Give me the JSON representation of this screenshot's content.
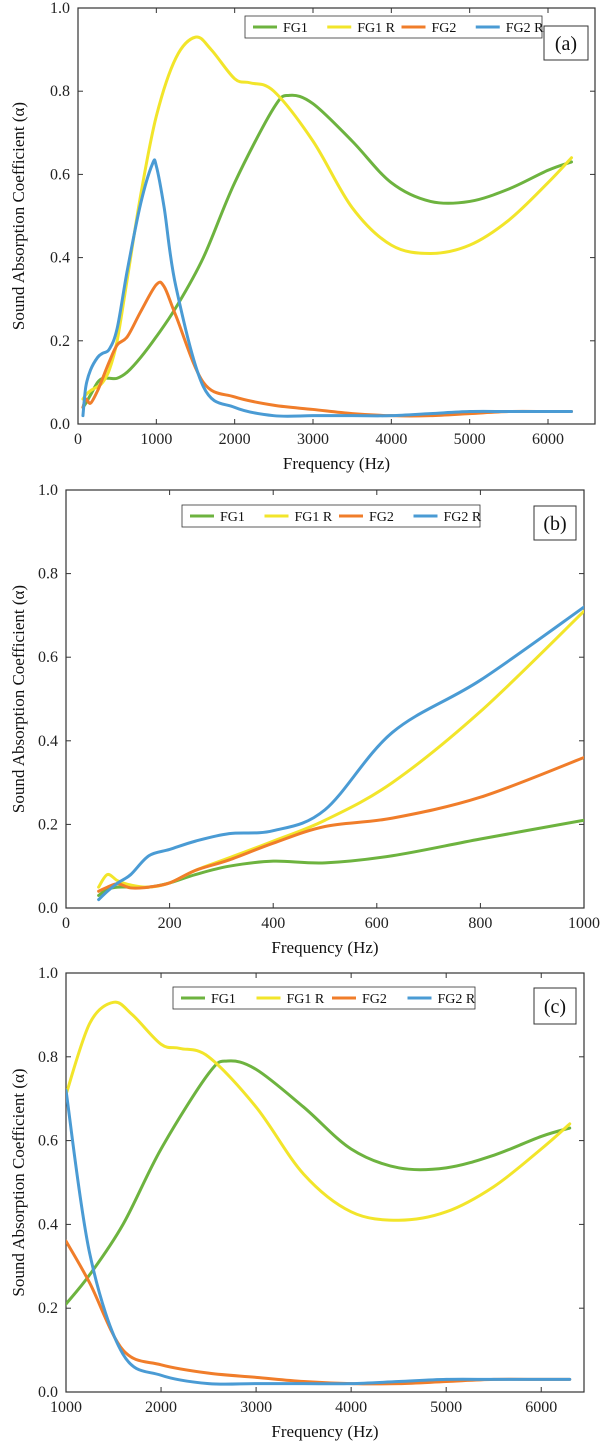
{
  "colors": {
    "FG1": "#6db33f",
    "FG1 R": "#f2e52a",
    "FG2": "#f07d2a",
    "FG2 R": "#4a9bd4"
  },
  "chart_data": [
    {
      "type": "line",
      "panel_label": "(a)",
      "xlabel": "Frequency (Hz)",
      "ylabel": "Sound Absorption Coefficient (α)",
      "xlim": [
        0,
        6600
      ],
      "ylim": [
        0,
        1.0
      ],
      "xticks": [
        0,
        1000,
        2000,
        3000,
        4000,
        5000,
        6000
      ],
      "yticks": [
        0.0,
        0.2,
        0.4,
        0.6,
        0.8,
        1.0
      ],
      "grid": false,
      "legend": "top-right",
      "series": [
        {
          "name": "FG1",
          "x": [
            63,
            100,
            160,
            250,
            315,
            400,
            500,
            630,
            800,
            1000,
            1250,
            1600,
            2000,
            2500,
            2700,
            3000,
            3500,
            4000,
            4500,
            5000,
            5500,
            6000,
            6300
          ],
          "y": [
            0.04,
            0.05,
            0.07,
            0.1,
            0.11,
            0.11,
            0.11,
            0.125,
            0.16,
            0.21,
            0.28,
            0.4,
            0.58,
            0.76,
            0.79,
            0.77,
            0.68,
            0.58,
            0.535,
            0.535,
            0.565,
            0.61,
            0.63
          ]
        },
        {
          "name": "FG1 R",
          "x": [
            63,
            100,
            160,
            250,
            315,
            400,
            500,
            630,
            800,
            1000,
            1250,
            1500,
            1700,
            2000,
            2200,
            2500,
            3000,
            3500,
            4000,
            4500,
            5000,
            5500,
            6000,
            6300
          ],
          "y": [
            0.06,
            0.07,
            0.08,
            0.09,
            0.1,
            0.13,
            0.2,
            0.35,
            0.55,
            0.74,
            0.88,
            0.93,
            0.9,
            0.83,
            0.82,
            0.8,
            0.68,
            0.52,
            0.43,
            0.41,
            0.43,
            0.49,
            0.58,
            0.64
          ]
        },
        {
          "name": "FG2",
          "x": [
            63,
            100,
            160,
            250,
            315,
            400,
            500,
            630,
            800,
            1000,
            1100,
            1250,
            1600,
            2000,
            2500,
            3000,
            3500,
            4000,
            4500,
            5000,
            5500,
            6000,
            6300
          ],
          "y": [
            0.04,
            0.06,
            0.05,
            0.08,
            0.11,
            0.15,
            0.19,
            0.21,
            0.27,
            0.335,
            0.33,
            0.26,
            0.1,
            0.065,
            0.045,
            0.035,
            0.025,
            0.02,
            0.02,
            0.025,
            0.03,
            0.03,
            0.03
          ]
        },
        {
          "name": "FG2 R",
          "x": [
            63,
            100,
            160,
            250,
            315,
            400,
            500,
            630,
            800,
            950,
            1000,
            1100,
            1250,
            1600,
            2000,
            2500,
            3000,
            3500,
            4000,
            4500,
            5000,
            5500,
            6000,
            6300
          ],
          "y": [
            0.02,
            0.09,
            0.13,
            0.16,
            0.17,
            0.18,
            0.23,
            0.37,
            0.53,
            0.625,
            0.62,
            0.52,
            0.33,
            0.09,
            0.04,
            0.02,
            0.02,
            0.02,
            0.02,
            0.025,
            0.03,
            0.03,
            0.03,
            0.03
          ]
        }
      ]
    },
    {
      "type": "line",
      "panel_label": "(b)",
      "xlabel": "Frequency (Hz)",
      "ylabel": "Sound Absorption Coefficient (α)",
      "xlim": [
        0,
        1000
      ],
      "ylim": [
        0,
        1.0
      ],
      "xticks": [
        0,
        200,
        400,
        600,
        800,
        1000
      ],
      "yticks": [
        0.0,
        0.2,
        0.4,
        0.6,
        0.8,
        1.0
      ],
      "grid": false,
      "legend": "top-center",
      "series": [
        {
          "name": "FG1",
          "x": [
            63,
            80,
            100,
            125,
            160,
            200,
            250,
            315,
            400,
            500,
            630,
            800,
            1000
          ],
          "y": [
            0.03,
            0.045,
            0.05,
            0.05,
            0.05,
            0.06,
            0.08,
            0.1,
            0.112,
            0.108,
            0.125,
            0.165,
            0.21
          ]
        },
        {
          "name": "FG1 R",
          "x": [
            63,
            80,
            100,
            125,
            160,
            200,
            250,
            315,
            400,
            500,
            630,
            800,
            1000
          ],
          "y": [
            0.05,
            0.08,
            0.065,
            0.055,
            0.05,
            0.06,
            0.09,
            0.12,
            0.16,
            0.21,
            0.3,
            0.47,
            0.71
          ]
        },
        {
          "name": "FG2",
          "x": [
            63,
            80,
            100,
            125,
            160,
            200,
            250,
            315,
            400,
            500,
            630,
            800,
            1000
          ],
          "y": [
            0.04,
            0.05,
            0.058,
            0.048,
            0.05,
            0.06,
            0.09,
            0.115,
            0.155,
            0.195,
            0.215,
            0.265,
            0.36
          ]
        },
        {
          "name": "FG2 R",
          "x": [
            63,
            80,
            100,
            125,
            160,
            200,
            250,
            315,
            400,
            500,
            630,
            800,
            1000
          ],
          "y": [
            0.02,
            0.04,
            0.06,
            0.08,
            0.125,
            0.14,
            0.16,
            0.178,
            0.185,
            0.235,
            0.42,
            0.545,
            0.72
          ]
        }
      ]
    },
    {
      "type": "line",
      "panel_label": "(c)",
      "xlabel": "Frequency (Hz)",
      "ylabel": "Sound Absorption Coefficient (α)",
      "xlim": [
        1000,
        6450
      ],
      "ylim": [
        0,
        1.0
      ],
      "xticks": [
        1000,
        2000,
        3000,
        4000,
        5000,
        6000
      ],
      "yticks": [
        0.0,
        0.2,
        0.4,
        0.6,
        0.8,
        1.0
      ],
      "grid": false,
      "legend": "top-center",
      "series": [
        {
          "name": "FG1",
          "x": [
            1000,
            1250,
            1600,
            2000,
            2500,
            2700,
            3000,
            3500,
            4000,
            4500,
            5000,
            5500,
            6000,
            6300
          ],
          "y": [
            0.21,
            0.28,
            0.4,
            0.58,
            0.76,
            0.79,
            0.77,
            0.68,
            0.58,
            0.535,
            0.535,
            0.565,
            0.61,
            0.63
          ]
        },
        {
          "name": "FG1 R",
          "x": [
            1000,
            1250,
            1500,
            1700,
            2000,
            2200,
            2500,
            3000,
            3500,
            4000,
            4500,
            5000,
            5500,
            6000,
            6300
          ],
          "y": [
            0.71,
            0.88,
            0.93,
            0.9,
            0.83,
            0.82,
            0.8,
            0.68,
            0.52,
            0.43,
            0.41,
            0.43,
            0.49,
            0.58,
            0.64
          ]
        },
        {
          "name": "FG2",
          "x": [
            1000,
            1250,
            1600,
            2000,
            2500,
            3000,
            3500,
            4000,
            4500,
            5000,
            5500,
            6000,
            6300
          ],
          "y": [
            0.36,
            0.26,
            0.1,
            0.065,
            0.045,
            0.035,
            0.025,
            0.02,
            0.02,
            0.025,
            0.03,
            0.03,
            0.03
          ]
        },
        {
          "name": "FG2 R",
          "x": [
            1000,
            1250,
            1600,
            2000,
            2500,
            3000,
            3500,
            4000,
            4500,
            5000,
            5500,
            6000,
            6300
          ],
          "y": [
            0.72,
            0.33,
            0.09,
            0.04,
            0.02,
            0.02,
            0.02,
            0.02,
            0.025,
            0.03,
            0.03,
            0.03,
            0.03
          ]
        }
      ]
    }
  ]
}
